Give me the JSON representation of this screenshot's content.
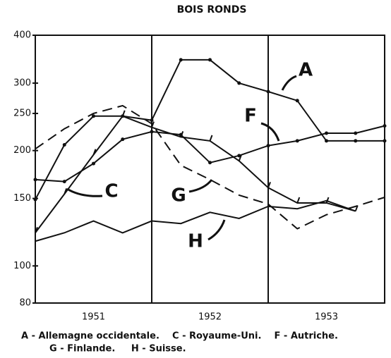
{
  "chart_data": {
    "type": "line",
    "title": "BOIS RONDS",
    "yscale": "log",
    "ylim": [
      80,
      400
    ],
    "yticks": [
      80,
      100,
      150,
      200,
      250,
      300,
      400
    ],
    "xlim": [
      1951,
      1954
    ],
    "xticks": [
      {
        "value": 1951.5,
        "label": "1951"
      },
      {
        "value": 1952.5,
        "label": "1952"
      },
      {
        "value": 1953.5,
        "label": "1953"
      }
    ],
    "vlines": [
      1952,
      1953
    ],
    "x": [
      1951,
      1951.25,
      1951.5,
      1951.75,
      1952,
      1952.25,
      1952.5,
      1952.75,
      1953,
      1953.25,
      1953.5,
      1953.75,
      1954
    ],
    "series": [
      {
        "name": "A",
        "color": "#111",
        "marker": "dot",
        "dash": false,
        "values": [
          149,
          207,
          246,
          246,
          240,
          345,
          345,
          300,
          285,
          270,
          212,
          212,
          212
        ]
      },
      {
        "name": "C",
        "color": "#111",
        "marker": "tick",
        "dash": false,
        "values": [
          122,
          154,
          195,
          246,
          230,
          217,
          212,
          188,
          160,
          146,
          146,
          139,
          null
        ]
      },
      {
        "name": "F",
        "color": "#111",
        "marker": "dot",
        "dash": false,
        "values": [
          168,
          166,
          185,
          214,
          224,
          220,
          186,
          194,
          206,
          212,
          222,
          222,
          232
        ]
      },
      {
        "name": "G",
        "color": "#111",
        "marker": "none",
        "dash": true,
        "values": [
          202,
          228,
          250,
          262,
          235,
          183,
          168,
          153,
          145,
          125,
          136,
          143,
          151
        ]
      },
      {
        "name": "H",
        "color": "#111",
        "marker": "none",
        "dash": false,
        "values": [
          116,
          122,
          131,
          122,
          131,
          129,
          138,
          133,
          143,
          141,
          148,
          139,
          null
        ]
      }
    ],
    "legend_lines": [
      "A - Allemagne occidentale.    C - Royaume-Uni.    F - Autriche.",
      "G - Finlande.     H - Suisse."
    ]
  }
}
